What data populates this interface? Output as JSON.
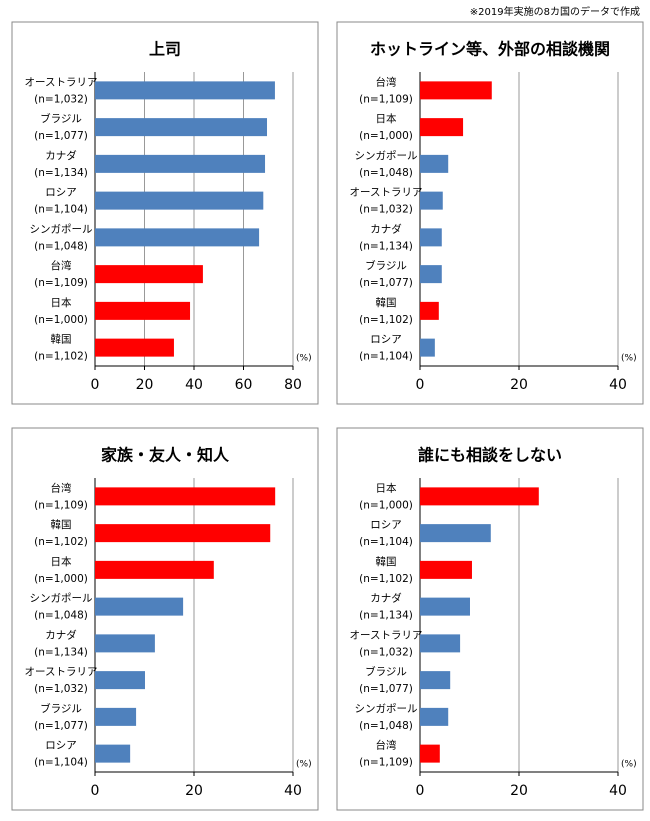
{
  "note": "※2019年実施の8カ国のデータで作成",
  "chart_data": [
    {
      "type": "bar",
      "orientation": "horizontal",
      "title": "上司",
      "categories": [
        "オーストラリア",
        "ブラジル",
        "カナダ",
        "ロシア",
        "シンガポール",
        "台湾",
        "日本",
        "韓国"
      ],
      "category_notes": [
        "(n=1,032)",
        "(n=1,077)",
        "(n=1,134)",
        "(n=1,104)",
        "(n=1,048)",
        "(n=1,109)",
        "(n=1,000)",
        "(n=1,102)"
      ],
      "values": [
        72.7,
        69.5,
        68.7,
        68.0,
        66.3,
        43.6,
        38.4,
        31.9
      ],
      "colors": [
        "#4f81bd",
        "#4f81bd",
        "#4f81bd",
        "#4f81bd",
        "#4f81bd",
        "#ff0000",
        "#ff0000",
        "#ff0000"
      ],
      "xlim": [
        0,
        80
      ],
      "xticks": [
        0,
        20,
        40,
        60,
        80
      ],
      "x_unit": "(%)",
      "grid": true
    },
    {
      "type": "bar",
      "orientation": "horizontal",
      "title": "ホットライン等、外部の相談機関",
      "categories": [
        "台湾",
        "日本",
        "シンガポール",
        "オーストラリア",
        "カナダ",
        "ブラジル",
        "韓国",
        "ロシア"
      ],
      "category_notes": [
        "(n=1,109)",
        "(n=1,000)",
        "(n=1,048)",
        "(n=1,032)",
        "(n=1,134)",
        "(n=1,077)",
        "(n=1,102)",
        "(n=1,104)"
      ],
      "values": [
        14.5,
        8.7,
        5.7,
        4.6,
        4.4,
        4.4,
        3.8,
        3.0
      ],
      "colors": [
        "#ff0000",
        "#ff0000",
        "#4f81bd",
        "#4f81bd",
        "#4f81bd",
        "#4f81bd",
        "#ff0000",
        "#4f81bd"
      ],
      "xlim": [
        0,
        40
      ],
      "xticks": [
        0,
        20,
        40
      ],
      "x_unit": "(%)",
      "grid": true
    },
    {
      "type": "bar",
      "orientation": "horizontal",
      "title": "家族・友人・知人",
      "categories": [
        "台湾",
        "韓国",
        "日本",
        "シンガポール",
        "カナダ",
        "オーストラリア",
        "ブラジル",
        "ロシア"
      ],
      "category_notes": [
        "(n=1,109)",
        "(n=1,102)",
        "(n=1,000)",
        "(n=1,048)",
        "(n=1,134)",
        "(n=1,032)",
        "(n=1,077)",
        "(n=1,104)"
      ],
      "values": [
        36.4,
        35.4,
        24.0,
        17.8,
        12.1,
        10.1,
        8.3,
        7.1
      ],
      "colors": [
        "#ff0000",
        "#ff0000",
        "#ff0000",
        "#4f81bd",
        "#4f81bd",
        "#4f81bd",
        "#4f81bd",
        "#4f81bd"
      ],
      "xlim": [
        0,
        40
      ],
      "xticks": [
        0,
        20,
        40
      ],
      "x_unit": "(%)",
      "grid": true
    },
    {
      "type": "bar",
      "orientation": "horizontal",
      "title": "誰にも相談をしない",
      "categories": [
        "日本",
        "ロシア",
        "韓国",
        "カナダ",
        "オーストラリア",
        "ブラジル",
        "シンガポール",
        "台湾"
      ],
      "category_notes": [
        "(n=1,000)",
        "(n=1,104)",
        "(n=1,102)",
        "(n=1,134)",
        "(n=1,032)",
        "(n=1,077)",
        "(n=1,048)",
        "(n=1,109)"
      ],
      "values": [
        24.0,
        14.3,
        10.5,
        10.1,
        8.1,
        6.1,
        5.7,
        4.0
      ],
      "colors": [
        "#ff0000",
        "#4f81bd",
        "#ff0000",
        "#4f81bd",
        "#4f81bd",
        "#4f81bd",
        "#4f81bd",
        "#ff0000"
      ],
      "xlim": [
        0,
        40
      ],
      "xticks": [
        0,
        20,
        40
      ],
      "x_unit": "(%)",
      "grid": true
    }
  ]
}
